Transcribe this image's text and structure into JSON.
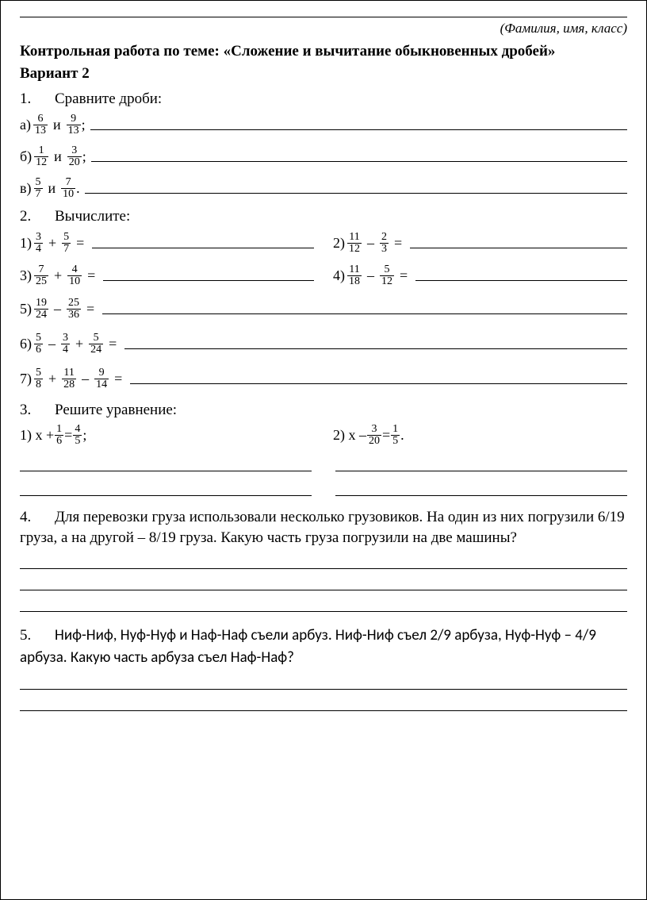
{
  "header": {
    "name_placeholder": "(Фамилия, имя, класс)",
    "title": "Контрольная работа по теме: «Сложение и вычитание обыкновенных дробей»",
    "variant": "Вариант 2"
  },
  "task1": {
    "num": "1.",
    "title": "Сравните дроби:",
    "items": [
      {
        "label": "а)",
        "f1": {
          "n": "6",
          "d": "13"
        },
        "conj": "и",
        "f2": {
          "n": "9",
          "d": "13"
        },
        "end": ";"
      },
      {
        "label": "б)",
        "f1": {
          "n": "1",
          "d": "12"
        },
        "conj": "и",
        "f2": {
          "n": "3",
          "d": "20"
        },
        "end": ";"
      },
      {
        "label": "в)",
        "f1": {
          "n": "5",
          "d": "7"
        },
        "conj": "и",
        "f2": {
          "n": "7",
          "d": "10"
        },
        "end": "."
      }
    ]
  },
  "task2": {
    "num": "2.",
    "title": "Вычислите:",
    "pairs": [
      {
        "left": {
          "label": "1)",
          "terms": [
            {
              "n": "3",
              "d": "4"
            },
            "+",
            {
              "n": "5",
              "d": "7"
            }
          ]
        },
        "right": {
          "label": "2)",
          "terms": [
            {
              "n": "11",
              "d": "12"
            },
            "–",
            {
              "n": "2",
              "d": "3"
            }
          ]
        }
      },
      {
        "left": {
          "label": "3)",
          "terms": [
            {
              "n": "7",
              "d": "25"
            },
            "+",
            {
              "n": "4",
              "d": "10"
            }
          ]
        },
        "right": {
          "label": "4)",
          "terms": [
            {
              "n": "11",
              "d": "18"
            },
            "–",
            {
              "n": "5",
              "d": "12"
            }
          ]
        }
      }
    ],
    "full": [
      {
        "label": "5)",
        "terms": [
          {
            "n": "19",
            "d": "24"
          },
          "–",
          {
            "n": "25",
            "d": "36"
          }
        ]
      },
      {
        "label": "6)",
        "terms": [
          {
            "n": "5",
            "d": "6"
          },
          "–",
          {
            "n": "3",
            "d": "4"
          },
          "+",
          {
            "n": "5",
            "d": "24"
          }
        ]
      },
      {
        "label": "7)",
        "terms": [
          {
            "n": "5",
            "d": "8"
          },
          "+",
          {
            "n": "11",
            "d": "28"
          },
          "–",
          {
            "n": "9",
            "d": "14"
          }
        ]
      }
    ]
  },
  "task3": {
    "num": "3.",
    "title": "Решите уравнение:",
    "eq1": {
      "label": "1) x + ",
      "f1": {
        "n": "1",
        "d": "6"
      },
      "eq": " = ",
      "f2": {
        "n": "4",
        "d": "5"
      },
      "end": " ;"
    },
    "eq2": {
      "label": "2) x – ",
      "f1": {
        "n": "3",
        "d": "20"
      },
      "eq": " = ",
      "f2": {
        "n": "1",
        "d": "5"
      },
      "end": " ."
    }
  },
  "task4": {
    "num": "4.",
    "text": "Для перевозки груза использовали несколько грузовиков. На один из них погрузили 6/19 груза, а на другой – 8/19 груза. Какую часть груза погрузили на две машины?"
  },
  "task5": {
    "num": "5.",
    "text": "Ниф-Ниф, Нуф-Нуф и Наф-Наф съели арбуз. Ниф-Ниф съел 2/9 арбуза, Нуф-Нуф – 4/9 арбуза. Какую часть арбуза съел Наф-Наф?"
  }
}
